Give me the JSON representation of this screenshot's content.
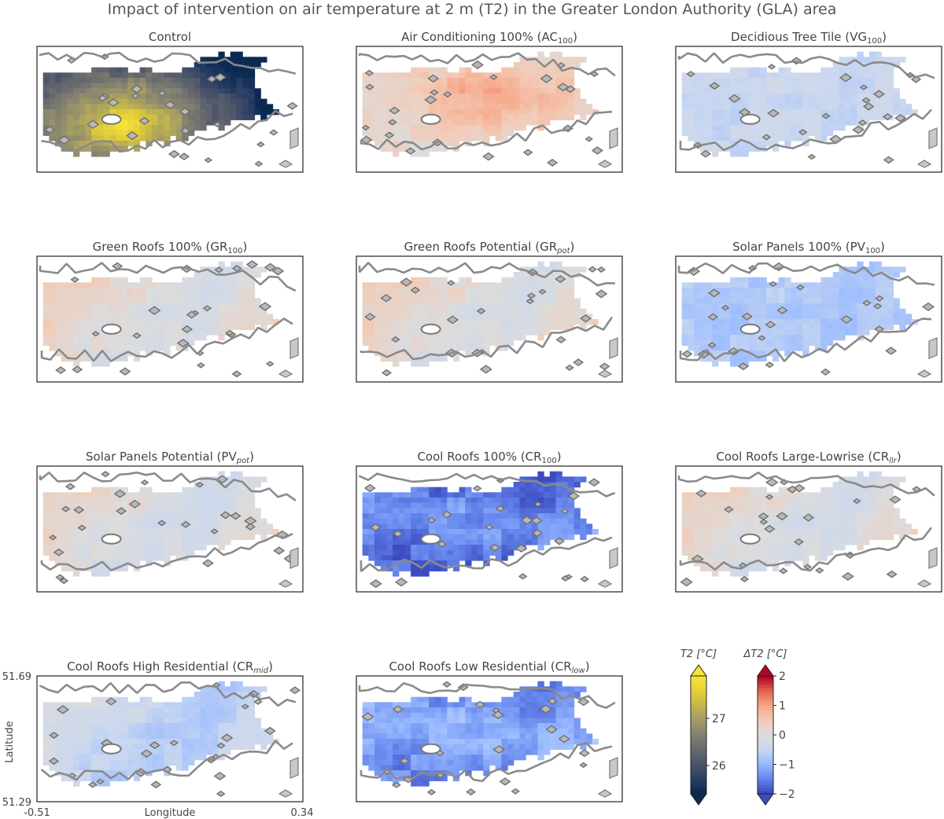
{
  "title": "Impact of intervention on air temperature at 2 m (T2) in the Greater London Authority (GLA) area",
  "chart_data": {
    "type": "heatmap",
    "panels": [
      {
        "id": "control",
        "title": "Control",
        "kind": "abs",
        "delta": 0,
        "pattern": "control"
      },
      {
        "id": "ac100",
        "title": "Air Conditioning 100% (AC",
        "sub": "100",
        "subItalic": false,
        "delta": 0.45,
        "pattern": "centerhot"
      },
      {
        "id": "vg100",
        "title": "Decidious Tree Tile (VG",
        "sub": "100",
        "subItalic": false,
        "delta": -0.45,
        "pattern": "uniform"
      },
      {
        "id": "gr100",
        "title": "Green Roofs 100% (GR",
        "sub": "100",
        "subItalic": false,
        "delta": 0.1,
        "pattern": "mixed"
      },
      {
        "id": "grpot",
        "title": "Green Roofs Potential (GR",
        "sub": "pot",
        "subItalic": true,
        "delta": 0.12,
        "pattern": "mixed"
      },
      {
        "id": "pv100",
        "title": "Solar Panels 100% (PV",
        "sub": "100",
        "subItalic": false,
        "delta": -0.75,
        "pattern": "uniform"
      },
      {
        "id": "pvpot",
        "title": "Solar Panels Potential (PV",
        "sub": "pot",
        "subItalic": true,
        "delta": 0.0,
        "pattern": "mixed"
      },
      {
        "id": "cr100",
        "title": "Cool Roofs 100% (CR",
        "sub": "100",
        "subItalic": false,
        "delta": -1.75,
        "pattern": "strongcool"
      },
      {
        "id": "crllr",
        "title": "Cool Roofs Large-Lowrise (CR",
        "sub": "llr",
        "subItalic": true,
        "delta": 0.05,
        "pattern": "mixed"
      },
      {
        "id": "crmid",
        "title": "Cool Roofs High Residential (CR",
        "sub": "mid",
        "subItalic": true,
        "delta": -0.45,
        "pattern": "mixed"
      },
      {
        "id": "crlow",
        "title": "Cool Roofs Low Residential (CR",
        "sub": "low",
        "subItalic": true,
        "delta": -1.45,
        "pattern": "strongcool"
      }
    ],
    "axes": {
      "xlabel": "Longitude",
      "ylabel": "Latitude",
      "xticks": [
        "-0.51",
        "0.34"
      ],
      "yticks": [
        "51.69",
        "51.29"
      ],
      "xlim": [
        -0.51,
        0.34
      ],
      "ylim": [
        51.29,
        51.69
      ]
    },
    "colorbar_abs": {
      "label": "T2 [°C]",
      "ticks": [
        "26",
        "27"
      ],
      "range": [
        25.4,
        27.9
      ],
      "colors": [
        "#0b2a52",
        "#2d3f66",
        "#4c5468",
        "#676a6e",
        "#848170",
        "#a19a66",
        "#c2b44d",
        "#e3cf36",
        "#f5e33b"
      ]
    },
    "colorbar_delta": {
      "label": "ΔT2 [°C]",
      "ticks": [
        "2",
        "1",
        "0",
        "−1",
        "−2"
      ],
      "range": [
        -2,
        2
      ],
      "colors": [
        "#3b4cc0",
        "#6788ee",
        "#9abbff",
        "#c9d7f0",
        "#dcdcdc",
        "#f2cbb7",
        "#f7a889",
        "#e26952",
        "#b40426"
      ]
    }
  }
}
